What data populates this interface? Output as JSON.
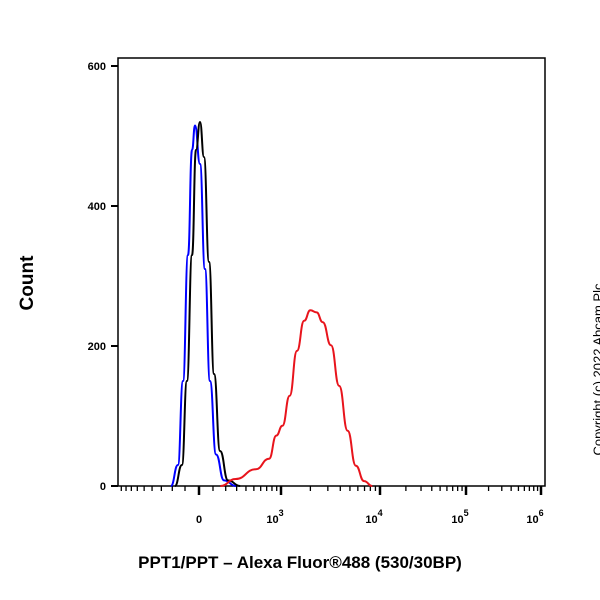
{
  "chart_data": {
    "type": "line",
    "title": "",
    "xlabel": "PPT1/PPT – Alexa Fluor®488 (530/30BP)",
    "ylabel": "Count",
    "x_scale": "biexponential",
    "xlim": [
      -1000,
      1000000
    ],
    "ylim": [
      0,
      600
    ],
    "yticks": [
      0,
      200,
      400,
      600
    ],
    "xticks": [
      {
        "value": 0,
        "label": "0"
      },
      {
        "value": 1000,
        "base": "10",
        "exp": "3"
      },
      {
        "value": 10000,
        "base": "10",
        "exp": "4"
      },
      {
        "value": 100000,
        "base": "10",
        "exp": "5"
      },
      {
        "value": 1000000,
        "base": "10",
        "exp": "6"
      }
    ],
    "grid": false,
    "series": [
      {
        "color": "#0000ff",
        "x": [
          -212,
          -154,
          -115,
          -78,
          -49,
          -28,
          7,
          42,
          78,
          123,
          186,
          294
        ],
        "y": [
          0,
          30,
          150,
          330,
          480,
          515,
          460,
          310,
          150,
          45,
          8,
          0
        ]
      },
      {
        "color": "#000000",
        "x": [
          -178,
          -123,
          -86,
          -49,
          -21,
          7,
          35,
          71,
          108,
          154,
          220,
          336
        ],
        "y": [
          0,
          30,
          150,
          330,
          480,
          520,
          470,
          320,
          160,
          50,
          8,
          0
        ]
      },
      {
        "color": "#e8141c",
        "x": [
          156,
          290,
          528,
          744,
          891,
          1035,
          1230,
          1461,
          1728,
          1998,
          2310,
          2667,
          3228,
          3900,
          4740,
          5730,
          6930,
          8370
        ],
        "y": [
          0,
          10,
          24,
          39,
          72,
          86,
          129,
          193,
          236,
          251,
          248,
          234,
          201,
          143,
          79,
          29,
          7,
          0
        ]
      }
    ]
  },
  "copyright": "Copyright (c) 2022 Abcam Plc"
}
